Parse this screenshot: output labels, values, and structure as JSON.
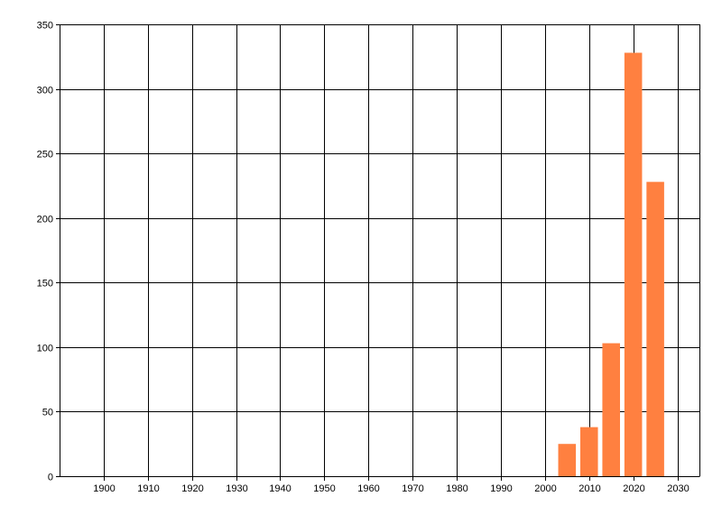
{
  "chart_data": {
    "type": "bar",
    "title": "",
    "xlabel": "",
    "ylabel": "",
    "x": [
      2005,
      2010,
      2015,
      2020,
      2025
    ],
    "values": [
      25,
      38,
      103,
      328,
      228
    ],
    "bar_width_years": 4,
    "xlim": [
      1890,
      2035
    ],
    "ylim": [
      0,
      350
    ],
    "xticks": [
      1900,
      1910,
      1920,
      1930,
      1940,
      1950,
      1960,
      1970,
      1980,
      1990,
      2000,
      2010,
      2020,
      2030
    ],
    "yticks": [
      0,
      50,
      100,
      150,
      200,
      250,
      300,
      350
    ],
    "grid": true,
    "bar_color": "#FF8040",
    "grid_color": "#000000"
  }
}
